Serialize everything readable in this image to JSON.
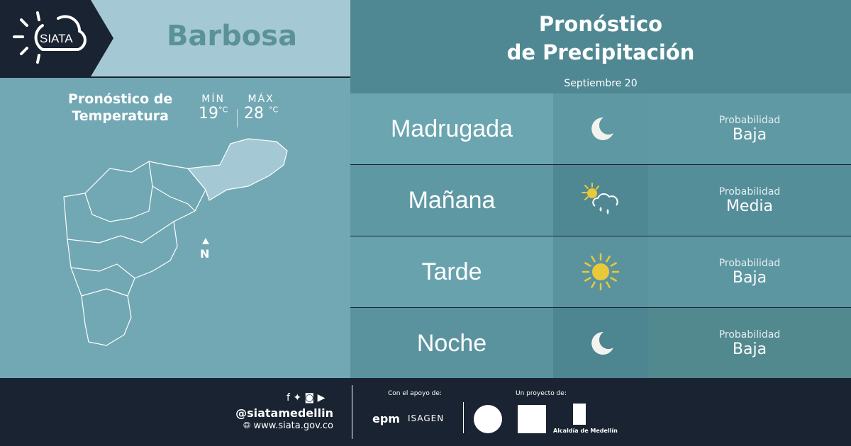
{
  "brand": {
    "logo_text": "SIATA"
  },
  "location": {
    "city": "Barbosa"
  },
  "temperature": {
    "title_line1": "Pronóstico de",
    "title_line2": "Temperatura",
    "min_label": "MÍN",
    "min_value": "19",
    "max_label": "MÁX",
    "max_value": "28",
    "unit": "°C"
  },
  "map": {
    "north_label": "N"
  },
  "forecast": {
    "title_line1": "Pronóstico",
    "title_line2": "de Precipitación",
    "date": "Septiembre 20",
    "rows": [
      {
        "period": "Madrugada",
        "icon": "moon-icon",
        "prob_label": "Probabilidad",
        "prob_value": "Baja"
      },
      {
        "period": "Mañana",
        "icon": "sun-cloud-rain-icon",
        "prob_label": "Probabilidad",
        "prob_value": "Media"
      },
      {
        "period": "Tarde",
        "icon": "sun-icon",
        "prob_label": "Probabilidad",
        "prob_value": "Baja"
      },
      {
        "period": "Noche",
        "icon": "moon-icon",
        "prob_label": "Probabilidad",
        "prob_value": "Baja"
      }
    ]
  },
  "footer": {
    "handle": "@siatamedellin",
    "website": "www.siata.gov.co",
    "support_label": "Con el apoyo de:",
    "project_label": "Un proyecto de:",
    "sponsor1": "epm",
    "sponsor2": "ISAGEN",
    "partner_alcaldia": "Alcaldía de Medellín"
  },
  "colors": {
    "sun": "#e8c93a",
    "dark": "#1a2331"
  }
}
